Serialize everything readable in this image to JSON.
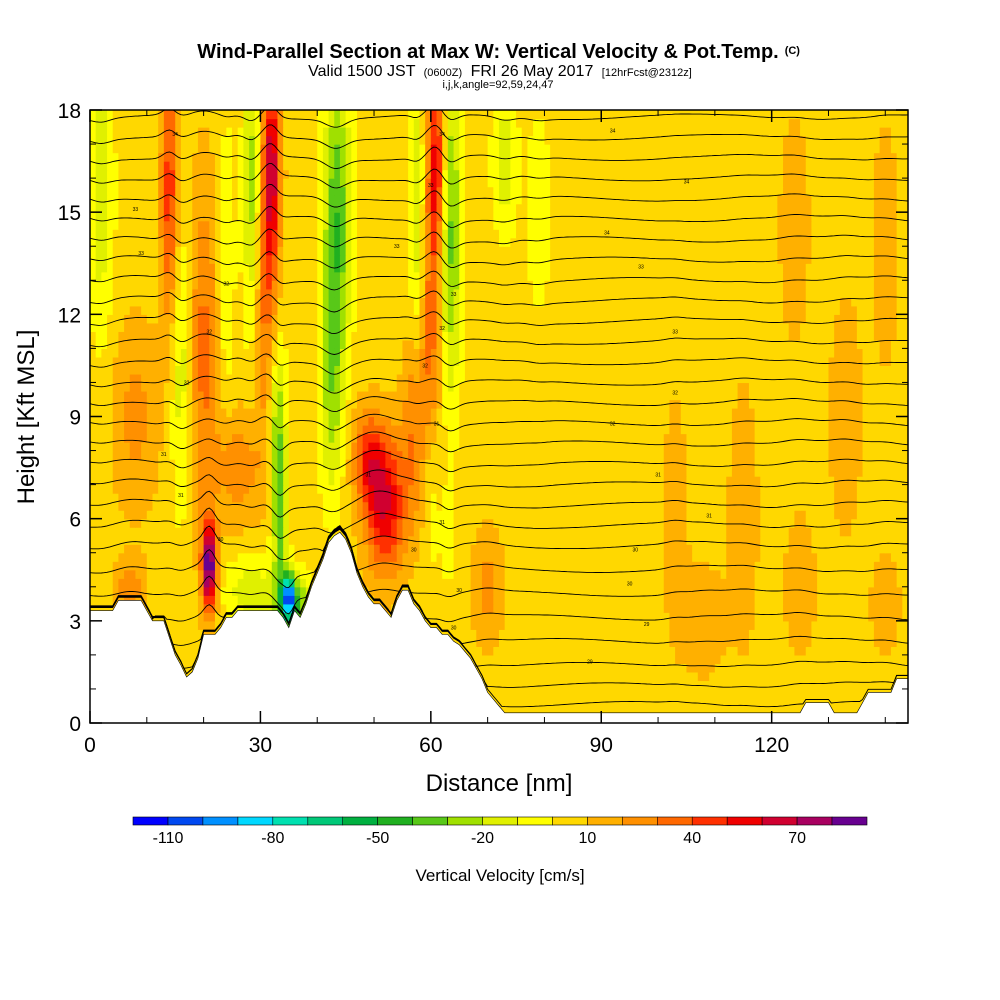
{
  "title": {
    "main": "Wind-Parallel Section at Max W: Vertical Velocity & Pot.Temp.",
    "copyright": "(C)",
    "valid_prefix": "Valid 1500 JST",
    "valid_utc": "(0600Z)",
    "valid_date": "FRI 26 May 2017",
    "forecast": "[12hrFcst@2312z]",
    "grid_info": "i,j,k,angle=92,59,24,47"
  },
  "colors": {
    "background": "#ffffff",
    "terrain": "#ffffff",
    "contour": "#000000"
  },
  "chart_data": {
    "type": "heatmap",
    "xlabel": "Distance [nm]",
    "ylabel": "Height [Kft MSL]",
    "xlim": [
      0,
      144
    ],
    "ylim": [
      0,
      18
    ],
    "xticks": [
      0,
      30,
      60,
      90,
      120
    ],
    "yticks": [
      0,
      3,
      6,
      9,
      12,
      15,
      18
    ],
    "background_w": 5,
    "updrafts": [
      {
        "x": 21,
        "y": 4.6,
        "peak": 85,
        "sx": 0.9,
        "sy": 0.9
      },
      {
        "x": 52,
        "y": 6.4,
        "peak": 55,
        "sx": 2.5,
        "sy": 1.4
      },
      {
        "x": 49,
        "y": 7.8,
        "peak": 35,
        "sx": 2.0,
        "sy": 1.0
      },
      {
        "x": 32,
        "y": 16.5,
        "peak": 55,
        "sx": 1.1,
        "sy": 2.0
      },
      {
        "x": 31,
        "y": 12.5,
        "peak": 30,
        "sx": 1.5,
        "sy": 3.0
      },
      {
        "x": 14,
        "y": 15.5,
        "peak": 42,
        "sx": 1.1,
        "sy": 2.8
      },
      {
        "x": 20,
        "y": 11.0,
        "peak": 28,
        "sx": 1.8,
        "sy": 3.5
      },
      {
        "x": 61,
        "y": 16.5,
        "peak": 48,
        "sx": 1.1,
        "sy": 2.0
      },
      {
        "x": 60,
        "y": 11.0,
        "peak": 30,
        "sx": 1.2,
        "sy": 3.5
      },
      {
        "x": 57,
        "y": 8.8,
        "peak": 24,
        "sx": 1.5,
        "sy": 2.0
      },
      {
        "x": 26,
        "y": 7.5,
        "peak": 22,
        "sx": 3.0,
        "sy": 1.2
      },
      {
        "x": 7,
        "y": 4.0,
        "peak": 20,
        "sx": 2.0,
        "sy": 0.6
      },
      {
        "x": 8,
        "y": 9.0,
        "peak": 18,
        "sx": 3.0,
        "sy": 2.0
      },
      {
        "x": 40,
        "y": 3.5,
        "peak": 18,
        "sx": 1.0,
        "sy": 0.8
      },
      {
        "x": 70,
        "y": 4.0,
        "peak": 18,
        "sx": 2.0,
        "sy": 1.2
      },
      {
        "x": 103,
        "y": 6.0,
        "peak": 14,
        "sx": 1.5,
        "sy": 2.5
      },
      {
        "x": 108,
        "y": 3.0,
        "peak": 14,
        "sx": 2.5,
        "sy": 1.2
      },
      {
        "x": 115,
        "y": 6.0,
        "peak": 12,
        "sx": 2.0,
        "sy": 3.0
      },
      {
        "x": 125,
        "y": 4.0,
        "peak": 14,
        "sx": 2.0,
        "sy": 1.5
      },
      {
        "x": 133,
        "y": 9.0,
        "peak": 14,
        "sx": 2.0,
        "sy": 2.5
      },
      {
        "x": 140,
        "y": 3.5,
        "peak": 12,
        "sx": 2.0,
        "sy": 1.2
      },
      {
        "x": 124,
        "y": 14.5,
        "peak": 12,
        "sx": 2.0,
        "sy": 2.5
      },
      {
        "x": 140,
        "y": 14.0,
        "peak": 10,
        "sx": 2.0,
        "sy": 3.0
      }
    ],
    "downdrafts": [
      {
        "x": 35,
        "y": 3.7,
        "peak": -85,
        "sx": 0.8,
        "sy": 0.5
      },
      {
        "x": 36,
        "y": 3.5,
        "peak": -35,
        "sx": 3.0,
        "sy": 0.6
      },
      {
        "x": 28,
        "y": 3.9,
        "peak": -22,
        "sx": 3.0,
        "sy": 0.7
      },
      {
        "x": 33,
        "y": 8.6,
        "peak": -38,
        "sx": 1.1,
        "sy": 2.0
      },
      {
        "x": 33.5,
        "y": 5.5,
        "peak": -30,
        "sx": 0.9,
        "sy": 1.5
      },
      {
        "x": 28.5,
        "y": 15.5,
        "peak": -32,
        "sx": 1.1,
        "sy": 3.0
      },
      {
        "x": 43.5,
        "y": 15.0,
        "peak": -42,
        "sx": 1.7,
        "sy": 3.0
      },
      {
        "x": 42.5,
        "y": 10.0,
        "peak": -28,
        "sx": 1.5,
        "sy": 2.5
      },
      {
        "x": 63.5,
        "y": 14.5,
        "peak": -38,
        "sx": 1.3,
        "sy": 3.5
      },
      {
        "x": 60,
        "y": 7.0,
        "peak": -22,
        "sx": 1.0,
        "sy": 2.0
      },
      {
        "x": 57.5,
        "y": 15.0,
        "peak": -24,
        "sx": 1.0,
        "sy": 3.0
      },
      {
        "x": 16,
        "y": 10.5,
        "peak": -22,
        "sx": 1.3,
        "sy": 3.0
      },
      {
        "x": 2,
        "y": 15.5,
        "peak": -22,
        "sx": 1.5,
        "sy": 3.0
      },
      {
        "x": 24,
        "y": 13.5,
        "peak": -15,
        "sx": 1.0,
        "sy": 3.0
      },
      {
        "x": 73,
        "y": 16.5,
        "peak": -22,
        "sx": 1.5,
        "sy": 1.5
      },
      {
        "x": 79,
        "y": 15.0,
        "peak": -14,
        "sx": 1.5,
        "sy": 2.0
      },
      {
        "x": 63,
        "y": 5.5,
        "peak": -12,
        "sx": 1.0,
        "sy": 1.0
      }
    ],
    "terrain": {
      "x": [
        0,
        4,
        5,
        9,
        10,
        11,
        12,
        13,
        14,
        15,
        16,
        17,
        18,
        19,
        20,
        21,
        22,
        23,
        24,
        25,
        26,
        27,
        28,
        29,
        30,
        31,
        32,
        33,
        34,
        35,
        36,
        37,
        38,
        39,
        40,
        41,
        42,
        43,
        44,
        45,
        46,
        47,
        48,
        49,
        50,
        51,
        52,
        53,
        54,
        55,
        56,
        57,
        58,
        59,
        60,
        61,
        62,
        63,
        64,
        65,
        66,
        67,
        68,
        69,
        70,
        71,
        72,
        73,
        74,
        75,
        76,
        78,
        80,
        85,
        90,
        95,
        100,
        105,
        110,
        115,
        120,
        125,
        126,
        127,
        128,
        129,
        130,
        131,
        132,
        133,
        134,
        135,
        136,
        137,
        138,
        139,
        140,
        141,
        142,
        143,
        144
      ],
      "h": [
        3.3,
        3.3,
        3.6,
        3.6,
        3.3,
        3.0,
        3.0,
        3.0,
        2.5,
        2.0,
        1.7,
        1.35,
        1.5,
        1.9,
        2.6,
        2.6,
        2.6,
        2.8,
        3.1,
        3.1,
        3.3,
        3.3,
        3.3,
        3.3,
        3.3,
        3.3,
        3.3,
        3.3,
        3.1,
        2.8,
        3.3,
        3.1,
        3.5,
        4.0,
        4.4,
        4.8,
        5.3,
        5.5,
        5.6,
        5.4,
        5.0,
        4.4,
        4.0,
        3.7,
        3.5,
        3.5,
        3.3,
        3.1,
        3.6,
        3.9,
        3.9,
        3.5,
        3.3,
        3.0,
        2.8,
        2.8,
        2.6,
        2.6,
        2.4,
        2.3,
        2.1,
        1.9,
        1.6,
        1.3,
        0.9,
        0.7,
        0.5,
        0.3,
        0.3,
        0.3,
        0.3,
        0.3,
        0.3,
        0.3,
        0.3,
        0.3,
        0.3,
        0.3,
        0.3,
        0.3,
        0.3,
        0.3,
        0.6,
        0.6,
        0.6,
        0.6,
        0.6,
        0.3,
        0.3,
        0.3,
        0.3,
        0.3,
        0.6,
        0.9,
        0.9,
        0.9,
        0.9,
        0.9,
        1.3,
        1.3,
        1.3
      ]
    },
    "contour_levels": [
      {
        "y": 0.55,
        "value": "296"
      },
      {
        "y": 1.1,
        "value": "298"
      },
      {
        "y": 1.7,
        "value": "300"
      },
      {
        "y": 2.4,
        "value": "302"
      },
      {
        "y": 3.1,
        "value": "304"
      },
      {
        "y": 3.8,
        "value": "306"
      },
      {
        "y": 4.5,
        "value": "308"
      },
      {
        "y": 5.2,
        "value": "310"
      },
      {
        "y": 5.8,
        "value": "312"
      },
      {
        "y": 6.4,
        "value": "314"
      },
      {
        "y": 7.0,
        "value": "316"
      },
      {
        "y": 7.6,
        "value": "318"
      },
      {
        "y": 8.2,
        "value": "320"
      },
      {
        "y": 8.8,
        "value": "322"
      },
      {
        "y": 9.4,
        "value": "324"
      },
      {
        "y": 10.0,
        "value": "326"
      },
      {
        "y": 10.6,
        "value": "328"
      },
      {
        "y": 11.2,
        "value": "330"
      },
      {
        "y": 11.8,
        "value": "332"
      },
      {
        "y": 12.4,
        "value": "334"
      },
      {
        "y": 13.0,
        "value": "336"
      },
      {
        "y": 13.6,
        "value": "338"
      },
      {
        "y": 14.2,
        "value": "340"
      },
      {
        "y": 14.8,
        "value": "342"
      },
      {
        "y": 15.4,
        "value": "344"
      },
      {
        "y": 16.0,
        "value": "346"
      },
      {
        "y": 16.6,
        "value": "348"
      },
      {
        "y": 17.2,
        "value": "350"
      },
      {
        "y": 17.8,
        "value": "352"
      }
    ],
    "contour_labels": [
      {
        "x": 15,
        "y": 17.3,
        "text": "34"
      },
      {
        "x": 62,
        "y": 17.3,
        "text": "34"
      },
      {
        "x": 92,
        "y": 17.4,
        "text": "34"
      },
      {
        "x": 60,
        "y": 15.8,
        "text": "33"
      },
      {
        "x": 105,
        "y": 15.9,
        "text": "34"
      },
      {
        "x": 8,
        "y": 15.1,
        "text": "33"
      },
      {
        "x": 91,
        "y": 14.4,
        "text": "34"
      },
      {
        "x": 54,
        "y": 14.0,
        "text": "33"
      },
      {
        "x": 9,
        "y": 13.8,
        "text": "33"
      },
      {
        "x": 97,
        "y": 13.4,
        "text": "33"
      },
      {
        "x": 24,
        "y": 12.9,
        "text": "32"
      },
      {
        "x": 64,
        "y": 12.6,
        "text": "33"
      },
      {
        "x": 21,
        "y": 11.5,
        "text": "32"
      },
      {
        "x": 62,
        "y": 11.6,
        "text": "32"
      },
      {
        "x": 103,
        "y": 11.5,
        "text": "33"
      },
      {
        "x": 59,
        "y": 10.5,
        "text": "32"
      },
      {
        "x": 17,
        "y": 10.0,
        "text": "32"
      },
      {
        "x": 103,
        "y": 9.7,
        "text": "32"
      },
      {
        "x": 61,
        "y": 8.8,
        "text": "31"
      },
      {
        "x": 92,
        "y": 8.8,
        "text": "32"
      },
      {
        "x": 13,
        "y": 7.9,
        "text": "31"
      },
      {
        "x": 49,
        "y": 7.3,
        "text": "31"
      },
      {
        "x": 100,
        "y": 7.3,
        "text": "31"
      },
      {
        "x": 16,
        "y": 6.7,
        "text": "31"
      },
      {
        "x": 62,
        "y": 5.9,
        "text": "31"
      },
      {
        "x": 109,
        "y": 6.1,
        "text": "31"
      },
      {
        "x": 23,
        "y": 5.4,
        "text": "30"
      },
      {
        "x": 57,
        "y": 5.1,
        "text": "30"
      },
      {
        "x": 96,
        "y": 5.1,
        "text": "30"
      },
      {
        "x": 95,
        "y": 4.1,
        "text": "30"
      },
      {
        "x": 65,
        "y": 3.9,
        "text": "30"
      },
      {
        "x": 64,
        "y": 2.8,
        "text": "30"
      },
      {
        "x": 98,
        "y": 2.9,
        "text": "29"
      },
      {
        "x": 88,
        "y": 1.8,
        "text": "29"
      }
    ],
    "colorbar": {
      "label": "Vertical Velocity [cm/s]",
      "levels": [
        -120,
        -110,
        -100,
        -90,
        -80,
        -70,
        -60,
        -50,
        -40,
        -30,
        -20,
        -10,
        0,
        10,
        20,
        30,
        40,
        50,
        60,
        70,
        80,
        90
      ],
      "colors": [
        "#0000ff",
        "#0048f0",
        "#0090ff",
        "#00d8ff",
        "#00e0b0",
        "#00c878",
        "#00b040",
        "#20b020",
        "#58c818",
        "#a0e000",
        "#e0f000",
        "#ffff00",
        "#ffd800",
        "#ffb000",
        "#ff9000",
        "#ff6800",
        "#ff3000",
        "#f00000",
        "#d00030",
        "#a80060",
        "#680090"
      ],
      "tick_values": [
        -110,
        -80,
        -50,
        -20,
        10,
        40,
        70
      ],
      "tick_labels": [
        "-110",
        "-80",
        "-50",
        "-20",
        "10",
        "40",
        "70"
      ]
    }
  }
}
